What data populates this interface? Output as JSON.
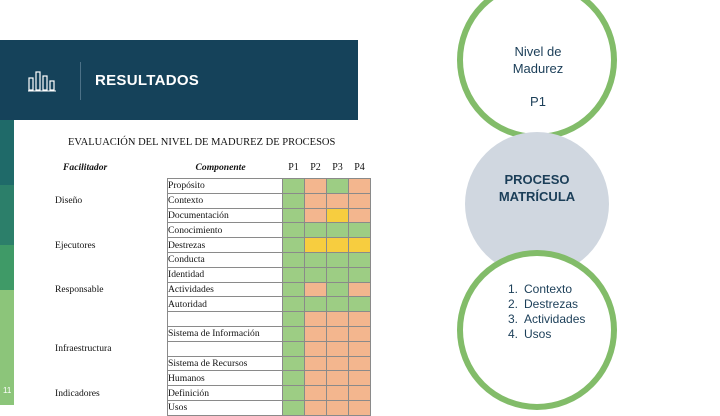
{
  "header": {
    "title": "RESULTADOS",
    "icon": "bar-chart-icon"
  },
  "table": {
    "title": "EVALUACIÓN DEL NIVEL DE MADUREZ DE PROCESOS",
    "headers": {
      "facilitador": "Facilitador",
      "componente": "Componente",
      "p1": "P1",
      "p2": "P2",
      "p3": "P3",
      "p4": "P4"
    },
    "rows": [
      {
        "facilitador": "",
        "componente": "Propósito",
        "cells": [
          "g",
          "o",
          "g",
          "o"
        ]
      },
      {
        "facilitador": "Diseño",
        "componente": "Contexto",
        "cells": [
          "g",
          "o",
          "o",
          "o"
        ]
      },
      {
        "facilitador": "",
        "componente": "Documentación",
        "cells": [
          "g",
          "o",
          "y",
          "o"
        ]
      },
      {
        "facilitador": "",
        "componente": "Conocimiento",
        "cells": [
          "g",
          "g",
          "g",
          "g"
        ]
      },
      {
        "facilitador": "Ejecutores",
        "componente": "Destrezas",
        "cells": [
          "g",
          "y",
          "y",
          "y"
        ]
      },
      {
        "facilitador": "",
        "componente": "Conducta",
        "cells": [
          "g",
          "g",
          "g",
          "g"
        ]
      },
      {
        "facilitador": "",
        "componente": "Identidad",
        "cells": [
          "g",
          "g",
          "g",
          "g"
        ]
      },
      {
        "facilitador": "Responsable",
        "componente": "Actividades",
        "cells": [
          "g",
          "o",
          "g",
          "o"
        ]
      },
      {
        "facilitador": "",
        "componente": "Autoridad",
        "cells": [
          "g",
          "g",
          "g",
          "g"
        ]
      },
      {
        "facilitador": "",
        "componente": "",
        "cells": [
          "g",
          "o",
          "o",
          "o"
        ]
      },
      {
        "facilitador": "",
        "componente": "Sistema de Información",
        "cells": [
          "g",
          "o",
          "o",
          "o"
        ]
      },
      {
        "facilitador": "Infraestructura",
        "componente": "",
        "cells": [
          "g",
          "o",
          "o",
          "o"
        ]
      },
      {
        "facilitador": "",
        "componente": "Sistema de Recursos",
        "cells": [
          "g",
          "o",
          "o",
          "o"
        ]
      },
      {
        "facilitador": "",
        "componente": "Humanos",
        "cells": [
          "g",
          "o",
          "o",
          "o"
        ]
      },
      {
        "facilitador": "Indicadores",
        "componente": "Definición",
        "cells": [
          "g",
          "o",
          "o",
          "o"
        ]
      },
      {
        "facilitador": "",
        "componente": "Usos",
        "cells": [
          "g",
          "o",
          "o",
          "o"
        ]
      }
    ],
    "colors": {
      "g": "#9dcd84",
      "y": "#f7cd3f",
      "o": "#f3b68e"
    }
  },
  "circles": {
    "nivel_line1": "Nivel de",
    "nivel_line2": "Madurez",
    "level": "P1",
    "proceso_line1": "PROCESO",
    "proceso_line2": "MATRÍCULA",
    "list": [
      {
        "num": "1.",
        "text": "Contexto"
      },
      {
        "num": "2.",
        "text": "Destrezas"
      },
      {
        "num": "3.",
        "text": "Actividades"
      },
      {
        "num": "4.",
        "text": "Usos"
      }
    ]
  },
  "page_number": "11"
}
